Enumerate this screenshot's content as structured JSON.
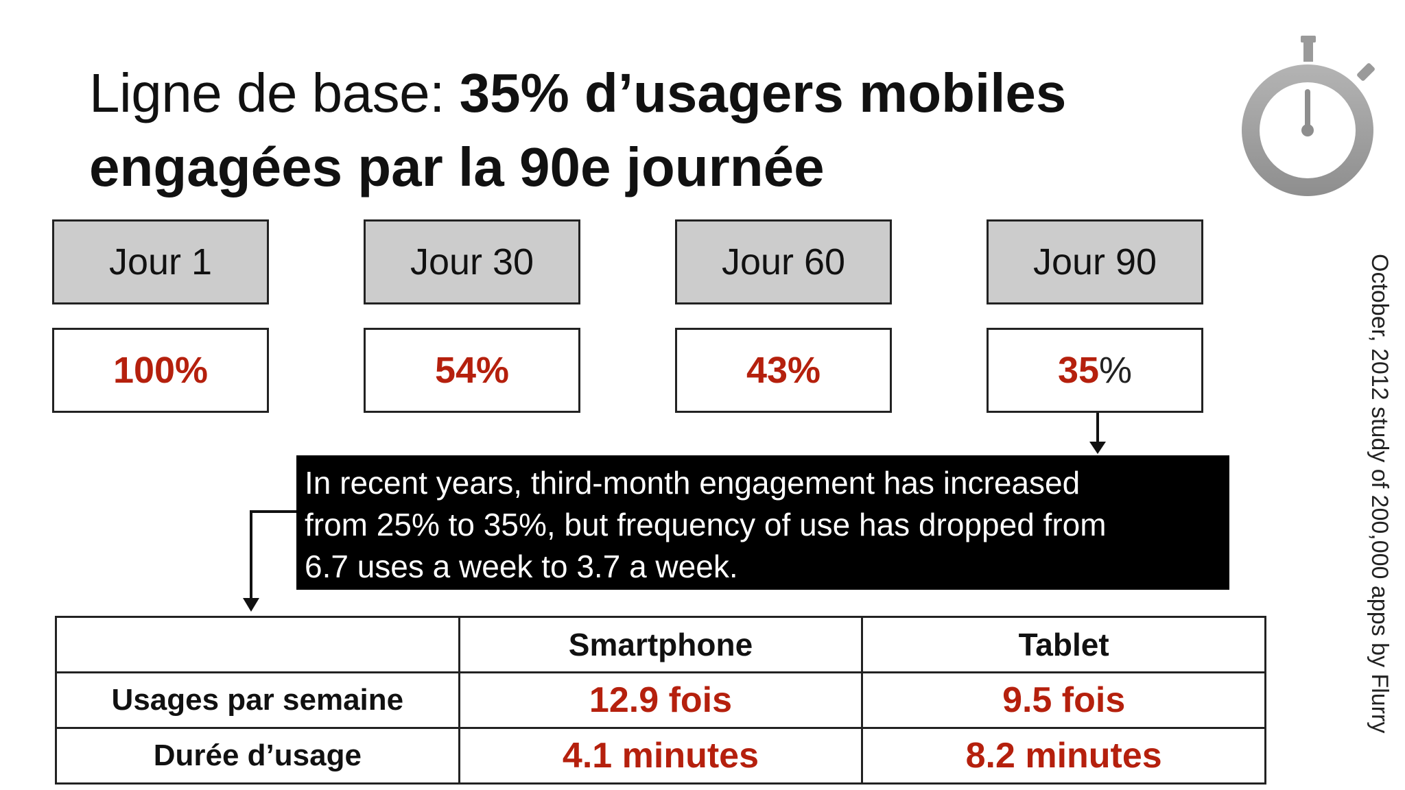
{
  "title": {
    "light": "Ligne de base: ",
    "bold": "35% d’usagers mobiles engagées par la 90e journée"
  },
  "days": [
    {
      "label": "Jour 1",
      "value": "100",
      "sign": "%"
    },
    {
      "label": "Jour 30",
      "value": "54",
      "sign": "%"
    },
    {
      "label": "Jour 60",
      "value": "43",
      "sign": "%"
    },
    {
      "label": "Jour 90",
      "value": "35",
      "sign": "%"
    }
  ],
  "callout": {
    "line1": "In recent years, third-month engagement has increased",
    "line2": "from 25% to 35%, but frequency of use has dropped from",
    "line3": "6.7 uses a week to 3.7 a week."
  },
  "table": {
    "headers": [
      "",
      "Smartphone",
      "Tablet"
    ],
    "rows": [
      {
        "label": "Usages par semaine",
        "smartphone": "12.9 fois",
        "tablet": "9.5 fois"
      },
      {
        "label": "Durée d’usage",
        "smartphone": "4.1 minutes",
        "tablet": "8.2 minutes"
      }
    ]
  },
  "source": "October, 2012 study of 200,000 apps by Flurry",
  "icons": {
    "stopwatch": "stopwatch-icon"
  },
  "colors": {
    "accent": "#b5200d",
    "header_fill": "#cccccc",
    "callout_bg": "#000000"
  }
}
